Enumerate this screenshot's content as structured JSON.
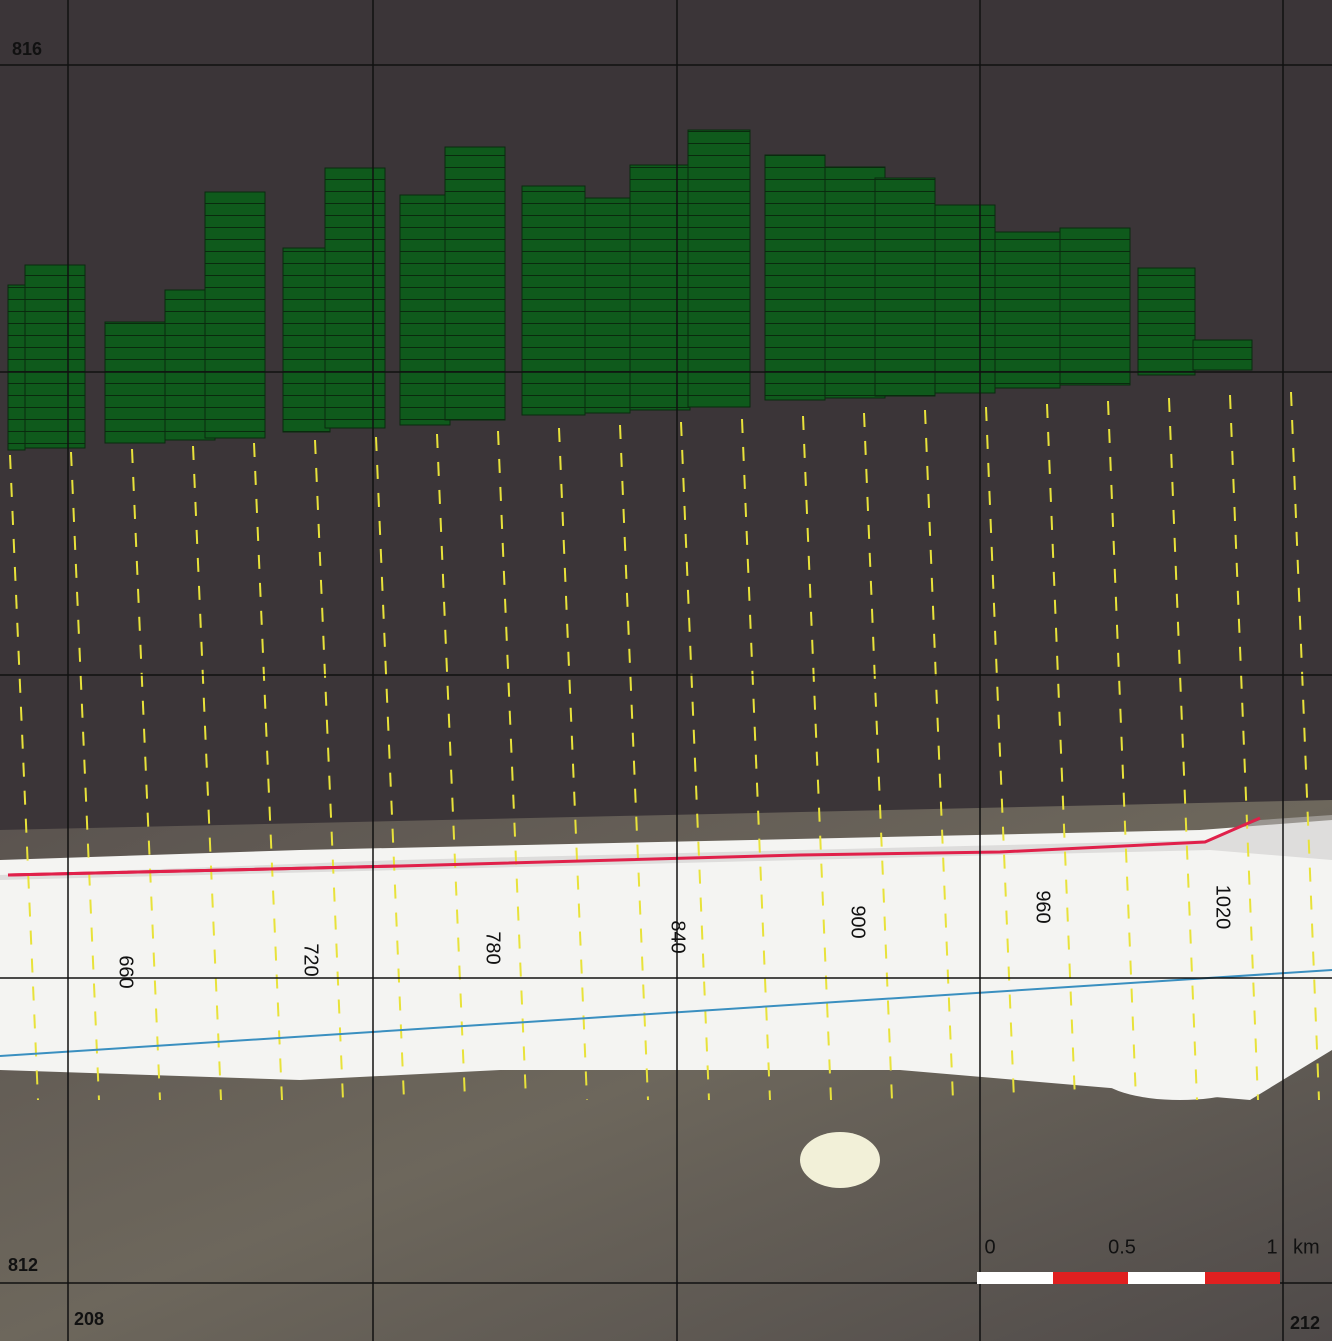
{
  "grid_labels": {
    "top_left": "816",
    "bottom_left": "812",
    "bottom_x_left": "208",
    "bottom_x_right": "212"
  },
  "transect_labels": [
    "660",
    "720",
    "780",
    "840",
    "900",
    "960",
    "1020"
  ],
  "scale_bar": {
    "start": "0",
    "middle": "0.5",
    "end": "1",
    "unit": "km"
  }
}
